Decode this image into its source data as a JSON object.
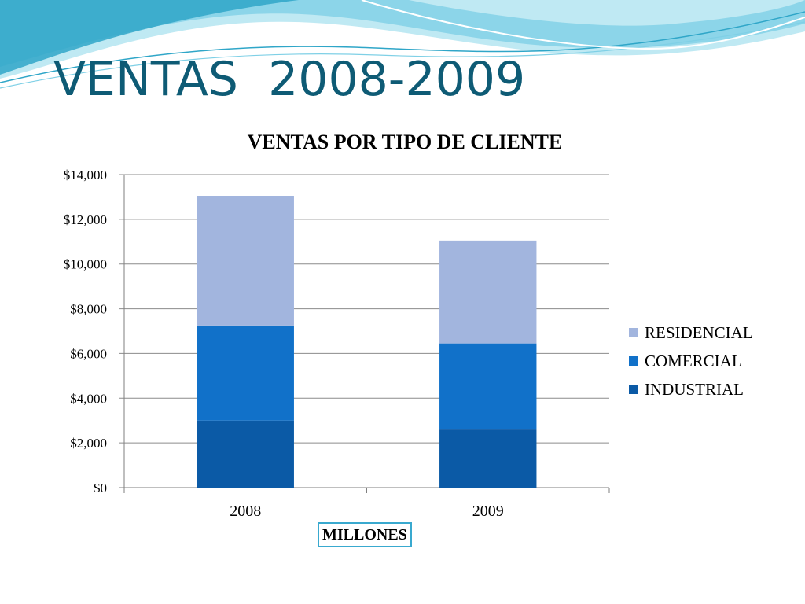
{
  "slide": {
    "title": "VENTAS  2008-2009"
  },
  "theme": {
    "title_color": "#0e5b75",
    "wave_colors": [
      "#2fa6c8",
      "#7fd0e6",
      "#bfe9f3"
    ]
  },
  "chart_data": {
    "type": "bar",
    "stacked": true,
    "title": "VENTAS POR TIPO DE CLIENTE",
    "categories": [
      "2008",
      "2009"
    ],
    "series": [
      {
        "name": "INDUSTRIAL",
        "values": [
          3000,
          2600
        ],
        "color": "#0b5aa6"
      },
      {
        "name": "COMERCIAL",
        "values": [
          4250,
          3850
        ],
        "color": "#1171c9"
      },
      {
        "name": "RESIDENCIAL",
        "values": [
          5800,
          4600
        ],
        "color": "#a2b5de"
      }
    ],
    "ylim": [
      0,
      14000
    ],
    "yticks": [
      0,
      2000,
      4000,
      6000,
      8000,
      10000,
      12000,
      14000
    ],
    "ytick_labels": [
      "$0",
      "$2,000",
      "$4,000",
      "$6,000",
      "$8,000",
      "$10,000",
      "$12,000",
      "$14,000"
    ],
    "grid": true,
    "legend_position": "right",
    "unit_label": "MILLONES"
  }
}
